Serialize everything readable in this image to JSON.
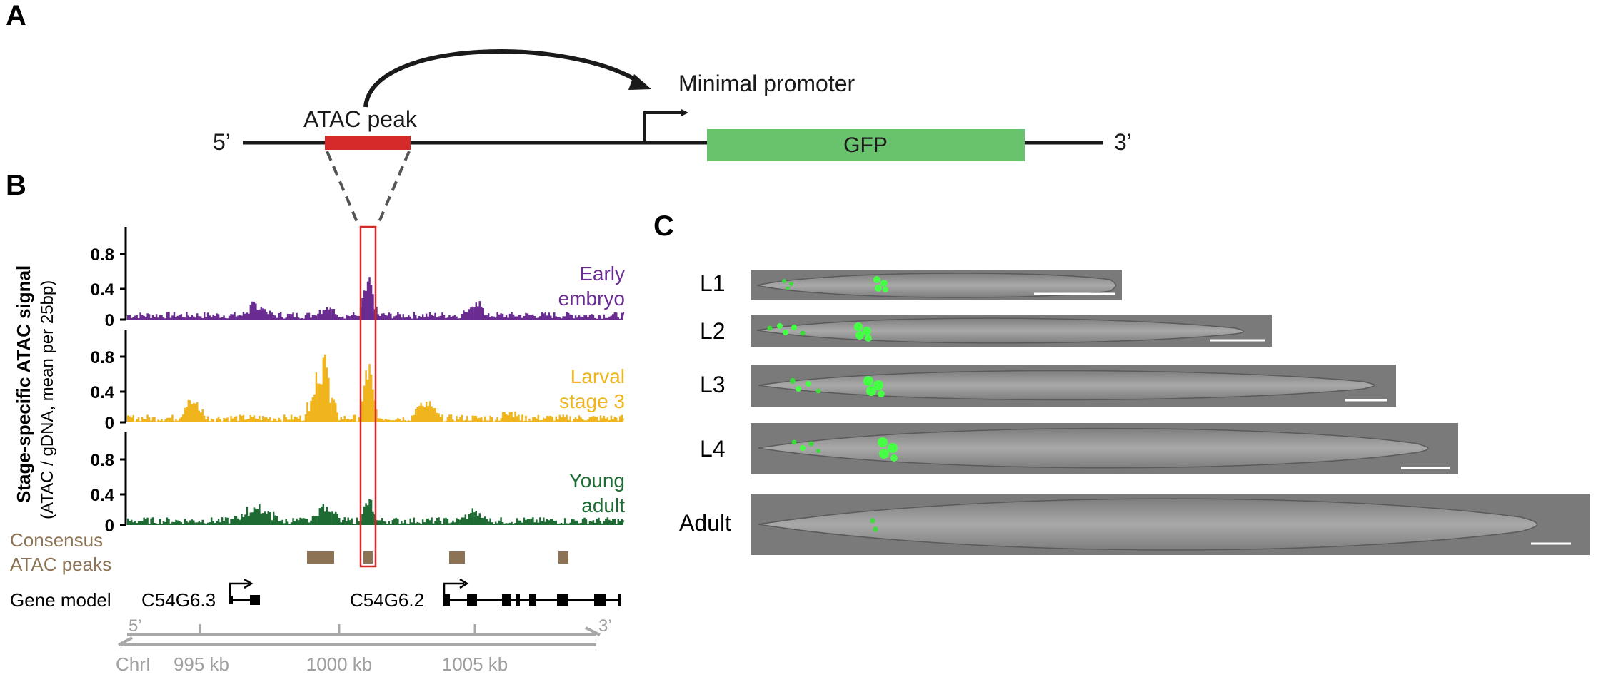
{
  "panels": {
    "a": "A",
    "b": "B",
    "c": "C"
  },
  "construct": {
    "five_prime": "5’",
    "three_prime": "3’",
    "atac_peak": "ATAC peak",
    "minimal_promoter": "Minimal promoter",
    "gfp": "GFP",
    "colors": {
      "peak": "#d42a2a",
      "gfp": "#69c36c",
      "line": "#1a1a1a"
    }
  },
  "tracks": {
    "y_axis_title": "Stage-specific ATAC signal",
    "y_axis_subtitle": "(ATAC / gDNA, mean per 25bp)",
    "tick_labels": [
      "0.8",
      "0.4",
      "0"
    ],
    "ylim": [
      0,
      1.0
    ],
    "rows": [
      {
        "label_line1": "Early",
        "label_line2": "embryo",
        "color": "#6a2c91"
      },
      {
        "label_line1": "Larval",
        "label_line2": "stage 3",
        "color": "#f0b41c"
      },
      {
        "label_line1": "Young",
        "label_line2": "adult",
        "color": "#1e6b34"
      }
    ],
    "consensus_line1": "Consensus",
    "consensus_line2": "ATAC peaks",
    "consensus_color": "#8c7355",
    "gene_model_label": "Gene model",
    "genes": [
      "C54G6.3",
      "C54G6.2"
    ],
    "axis_five": "5’",
    "axis_three": "3’",
    "chrom": "ChrI",
    "coords": [
      "995 kb",
      "1000 kb",
      "1005 kb"
    ]
  },
  "chart_data": [
    {
      "type": "area",
      "series": [
        {
          "name": "Early embryo",
          "peak_max": 0.5
        },
        {
          "name": "Larval stage 3",
          "peak_max": 0.95
        },
        {
          "name": "Young adult",
          "peak_max": 0.3
        }
      ],
      "ylim": [
        0,
        1.0
      ],
      "x_ticks": [
        "995 kb",
        "1000 kb",
        "1005 kb"
      ]
    }
  ],
  "worms": {
    "stages": [
      "L1",
      "L2",
      "L3",
      "L4",
      "Adult"
    ]
  }
}
